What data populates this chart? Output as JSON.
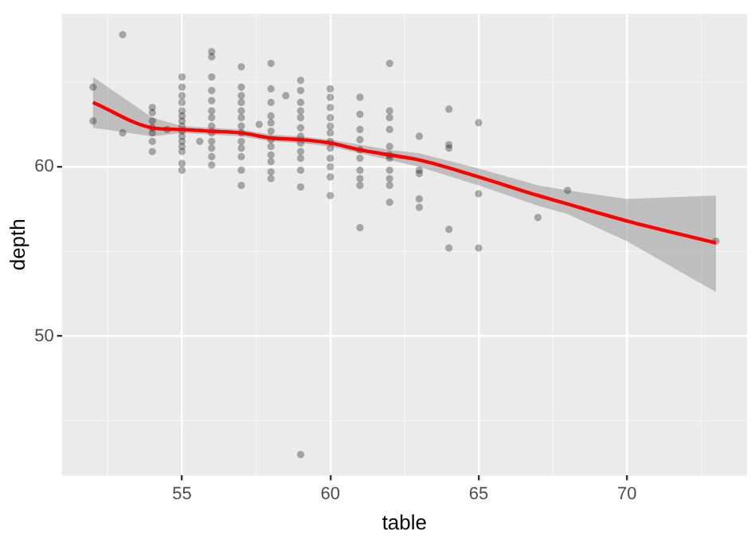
{
  "chart_data": {
    "type": "scatter",
    "xlabel": "table",
    "ylabel": "depth",
    "xlim": [
      50.95,
      74.05
    ],
    "ylim": [
      41.76,
      69.04
    ],
    "xticks": [
      55,
      60,
      65,
      70
    ],
    "yticks": [
      50,
      60
    ],
    "grid": true,
    "legend": false,
    "series": [
      {
        "marker": "circle",
        "color": "#000000",
        "x": [
          52,
          52,
          53,
          53,
          54,
          54,
          54,
          54,
          54,
          54,
          54,
          54.5,
          55,
          55,
          55,
          55,
          55,
          55,
          55,
          55,
          55,
          55,
          55,
          55,
          55,
          55,
          55,
          55.6,
          56,
          56,
          56,
          56,
          56,
          56,
          56,
          56,
          56,
          56,
          56,
          56,
          56,
          57,
          57,
          57,
          57,
          57,
          57,
          57,
          57,
          57,
          57,
          57,
          57,
          57,
          57.6,
          58,
          58,
          58,
          58,
          58,
          58,
          58,
          58,
          58,
          58,
          58,
          58,
          58.5,
          59,
          59,
          59,
          59,
          59,
          59,
          59,
          59,
          59,
          59,
          59,
          59,
          59,
          60,
          60,
          60,
          60,
          60,
          60,
          60,
          60,
          60,
          60,
          60,
          60,
          61,
          61,
          61,
          61,
          61,
          61,
          61,
          61,
          61,
          61,
          62,
          62,
          62,
          62,
          62,
          62,
          62,
          62,
          62,
          62,
          62,
          63,
          63,
          63,
          63,
          63,
          64,
          64,
          64,
          64,
          64,
          65,
          65,
          65,
          67,
          68,
          73
        ],
        "values": [
          64.7,
          62.7,
          67.8,
          62.0,
          63.5,
          63.2,
          62.7,
          62.3,
          62.0,
          61.5,
          60.9,
          62.2,
          65.3,
          64.7,
          64.2,
          63.8,
          63.3,
          63.0,
          62.7,
          62.4,
          62.1,
          61.8,
          61.5,
          61.2,
          60.9,
          60.2,
          59.8,
          61.5,
          66.8,
          66.5,
          65.3,
          64.5,
          63.9,
          63.3,
          62.9,
          62.4,
          62.0,
          61.5,
          61.1,
          60.6,
          60.1,
          65.9,
          64.7,
          64.2,
          63.8,
          63.3,
          62.9,
          62.4,
          62.0,
          61.5,
          61.1,
          60.6,
          59.8,
          58.9,
          62.5,
          66.1,
          64.6,
          63.8,
          63.0,
          62.6,
          62.1,
          61.6,
          61.2,
          60.7,
          60.3,
          59.7,
          59.3,
          64.2,
          65.1,
          64.5,
          63.8,
          63.3,
          62.9,
          62.3,
          61.8,
          61.4,
          60.9,
          60.5,
          59.8,
          58.8,
          43.0,
          64.6,
          64.1,
          63.5,
          62.9,
          62.4,
          62.0,
          61.5,
          61.1,
          60.5,
          60.0,
          59.4,
          58.3,
          64.1,
          63.1,
          62.2,
          61.6,
          61.0,
          60.5,
          59.8,
          59.3,
          58.9,
          56.4,
          66.1,
          63.3,
          62.9,
          62.2,
          61.2,
          60.7,
          60.5,
          59.3,
          58.9,
          57.9,
          59.8,
          61.8,
          59.8,
          59.6,
          58.1,
          57.6,
          63.4,
          61.3,
          61.1,
          56.3,
          55.2,
          62.6,
          58.4,
          55.2,
          57.0,
          58.6,
          55.6
        ]
      },
      {
        "type": "line",
        "marker": "none",
        "color": "#ff0000",
        "x": [
          52,
          54,
          55,
          56,
          57,
          58,
          59,
          60,
          61,
          62,
          63,
          65,
          67,
          68,
          70,
          73
        ],
        "values": [
          63.8,
          62.3,
          62.2,
          62.1,
          62.0,
          61.7,
          61.6,
          61.4,
          61.0,
          60.7,
          60.4,
          59.4,
          58.3,
          57.8,
          56.8,
          55.5
        ],
        "lower": [
          62.3,
          61.8,
          62.0,
          61.9,
          61.8,
          61.5,
          61.4,
          61.2,
          60.8,
          60.4,
          60.0,
          58.9,
          57.7,
          57.2,
          55.6,
          52.6
        ],
        "upper": [
          65.3,
          62.9,
          62.4,
          62.3,
          62.2,
          61.9,
          61.8,
          61.6,
          61.3,
          61.0,
          60.8,
          59.9,
          58.9,
          58.6,
          58.1,
          58.3
        ]
      }
    ]
  }
}
